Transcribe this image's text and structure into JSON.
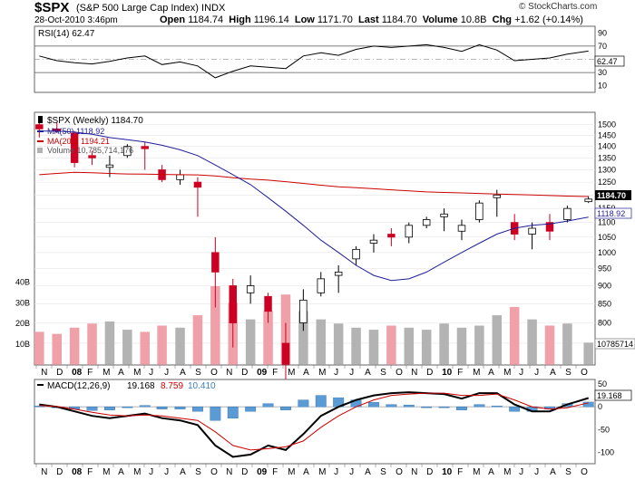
{
  "header": {
    "symbol": "$SPX",
    "name": "(S&P 500 Large Cap Index)",
    "exchange": "INDX",
    "date": "28-Oct-2010 3:46pm",
    "open_label": "Open",
    "open": "1184.74",
    "high_label": "High",
    "high": "1196.14",
    "low_label": "Low",
    "low": "1171.70",
    "last_label": "Last",
    "last": "1184.70",
    "volume_label": "Volume",
    "volume": "10.8B",
    "chg_label": "Chg",
    "chg": "+1.62 (+0.14%)",
    "watermark": "© StockCharts.com"
  },
  "colors": {
    "up_candle": "#000000",
    "down_candle": "#cc0022",
    "ma50": "#1f1f99",
    "ma200": "#cc0000",
    "vol_up": "#b3b3b3",
    "vol_down": "#f0a0a8",
    "macd_hist": "#5b9bd5",
    "signal": "#cc0000"
  },
  "chart_data": [
    {
      "type": "line",
      "label": "RSI(14) 62.47",
      "y_ticks": [
        90,
        70,
        50,
        30,
        10
      ],
      "ylim": [
        0,
        100
      ],
      "last_label": "62.47",
      "dates": [
        "2007-11-02",
        "2007-12-07",
        "2008-01-11",
        "2008-02-15",
        "2008-03-21",
        "2008-04-25",
        "2008-05-30",
        "2008-07-03",
        "2008-08-08",
        "2008-09-12",
        "2008-10-17",
        "2008-11-21",
        "2008-12-26",
        "2009-01-30",
        "2009-03-06",
        "2009-04-10",
        "2009-05-15",
        "2009-06-19",
        "2009-07-24",
        "2009-08-28",
        "2009-10-02",
        "2009-11-06",
        "2009-12-11",
        "2010-01-15",
        "2010-02-19",
        "2010-03-26",
        "2010-04-30",
        "2010-06-04",
        "2010-07-09",
        "2010-08-13",
        "2010-09-17",
        "2010-10-29"
      ],
      "values": [
        55,
        48,
        45,
        43,
        47,
        52,
        55,
        42,
        46,
        40,
        22,
        32,
        40,
        38,
        36,
        55,
        60,
        56,
        65,
        70,
        68,
        70,
        72,
        68,
        62,
        72,
        64,
        48,
        50,
        52,
        58,
        62.47
      ]
    },
    {
      "type": "candlestick",
      "label": "$SPX (Weekly) 1184.70",
      "ma50_label": "MA(50) 1118.92",
      "ma200_label": "MA(200) 1194.21",
      "volume_label": "Volume 10,785,714,176",
      "y_ticks": [
        1500,
        1450,
        1400,
        1350,
        1300,
        1250,
        1200,
        1150,
        1100,
        1050,
        1000,
        950,
        900,
        850,
        800,
        750
      ],
      "volume_ticks": [
        "40B",
        "30B",
        "20B",
        "10B"
      ],
      "volume_max": 45,
      "last_price_label": "1184.70",
      "ma50_last_label": "1118.92",
      "volume_last_label": "10785714",
      "dates": [
        "2007-11-02",
        "2007-12-07",
        "2008-01-11",
        "2008-02-15",
        "2008-03-21",
        "2008-04-25",
        "2008-05-30",
        "2008-07-03",
        "2008-08-08",
        "2008-09-12",
        "2008-10-17",
        "2008-11-21",
        "2008-12-26",
        "2009-01-30",
        "2009-03-06",
        "2009-04-10",
        "2009-05-15",
        "2009-06-19",
        "2009-07-24",
        "2009-08-28",
        "2009-10-02",
        "2009-11-06",
        "2009-12-11",
        "2010-01-15",
        "2010-02-19",
        "2010-03-26",
        "2010-04-30",
        "2010-06-04",
        "2010-07-09",
        "2010-08-13",
        "2010-09-17",
        "2010-10-29"
      ],
      "open": [
        1500,
        1480,
        1460,
        1360,
        1310,
        1360,
        1400,
        1300,
        1260,
        1250,
        1000,
        900,
        880,
        870,
        750,
        800,
        880,
        930,
        980,
        1030,
        1060,
        1050,
        1090,
        1120,
        1070,
        1110,
        1190,
        1100,
        1060,
        1100,
        1110,
        1175
      ],
      "high": [
        1520,
        1510,
        1470,
        1380,
        1360,
        1410,
        1420,
        1320,
        1300,
        1270,
        1050,
        920,
        930,
        880,
        800,
        890,
        940,
        960,
        1020,
        1060,
        1080,
        1100,
        1120,
        1150,
        1110,
        1180,
        1220,
        1130,
        1100,
        1130,
        1160,
        1196
      ],
      "low": [
        1440,
        1460,
        1310,
        1320,
        1270,
        1350,
        1300,
        1250,
        1240,
        1120,
        840,
        740,
        850,
        800,
        666,
        780,
        870,
        880,
        960,
        1000,
        1020,
        1030,
        1080,
        1070,
        1040,
        1100,
        1120,
        1040,
        1010,
        1040,
        1100,
        1170
      ],
      "close": [
        1480,
        1470,
        1330,
        1350,
        1320,
        1400,
        1390,
        1260,
        1280,
        1230,
        940,
        800,
        900,
        830,
        700,
        860,
        920,
        940,
        1010,
        1040,
        1050,
        1090,
        1110,
        1130,
        1090,
        1170,
        1200,
        1060,
        1080,
        1070,
        1150,
        1184.7
      ],
      "ma50": [
        1470,
        1470,
        1465,
        1455,
        1440,
        1430,
        1420,
        1405,
        1385,
        1360,
        1320,
        1280,
        1240,
        1190,
        1140,
        1090,
        1040,
        1000,
        960,
        930,
        915,
        920,
        940,
        970,
        1000,
        1030,
        1060,
        1080,
        1090,
        1095,
        1105,
        1118.92
      ],
      "ma200": [
        1280,
        1285,
        1290,
        1288,
        1285,
        1283,
        1282,
        1281,
        1280,
        1279,
        1275,
        1268,
        1262,
        1258,
        1252,
        1245,
        1238,
        1232,
        1228,
        1224,
        1220,
        1216,
        1212,
        1210,
        1208,
        1206,
        1204,
        1202,
        1200,
        1198,
        1196,
        1194.21
      ],
      "volume": [
        16,
        15,
        18,
        20,
        21,
        17,
        16,
        19,
        18,
        24,
        38,
        30,
        22,
        26,
        34,
        26,
        22,
        20,
        18,
        17,
        19,
        18,
        17,
        20,
        18,
        19,
        24,
        28,
        22,
        19,
        20,
        10.8
      ]
    },
    {
      "type": "line",
      "label": "MACD(12,26,9)",
      "macd_value": "19.168",
      "signal_value": "8.759",
      "histogram_value": "10.410",
      "y_ticks": [
        50,
        0,
        -50,
        -100
      ],
      "last_label": "19.168",
      "dates": [
        "2007-11-02",
        "2007-12-07",
        "2008-01-11",
        "2008-02-15",
        "2008-03-21",
        "2008-04-25",
        "2008-05-30",
        "2008-07-03",
        "2008-08-08",
        "2008-09-12",
        "2008-10-17",
        "2008-11-21",
        "2008-12-26",
        "2009-01-30",
        "2009-03-06",
        "2009-04-10",
        "2009-05-15",
        "2009-06-19",
        "2009-07-24",
        "2009-08-28",
        "2009-10-02",
        "2009-11-06",
        "2009-12-11",
        "2010-01-15",
        "2010-02-19",
        "2010-03-26",
        "2010-04-30",
        "2010-06-04",
        "2010-07-09",
        "2010-08-13",
        "2010-09-17",
        "2010-10-29"
      ],
      "macd": [
        5,
        0,
        -10,
        -20,
        -25,
        -20,
        -15,
        -25,
        -30,
        -40,
        -85,
        -110,
        -105,
        -85,
        -95,
        -60,
        -20,
        0,
        15,
        25,
        30,
        32,
        30,
        28,
        18,
        30,
        30,
        5,
        -10,
        -10,
        5,
        19.168
      ],
      "signal": [
        3,
        1,
        -5,
        -12,
        -18,
        -20,
        -18,
        -20,
        -25,
        -30,
        -55,
        -85,
        -95,
        -92,
        -88,
        -75,
        -45,
        -20,
        0,
        15,
        25,
        28,
        30,
        30,
        25,
        25,
        28,
        15,
        0,
        -5,
        -2,
        8.759
      ],
      "histogram": [
        2,
        -1,
        -5,
        -8,
        -7,
        0,
        3,
        -5,
        -5,
        -10,
        -30,
        -25,
        -10,
        7,
        -7,
        15,
        25,
        20,
        15,
        10,
        5,
        4,
        0,
        -2,
        -7,
        5,
        2,
        -10,
        -10,
        -5,
        7,
        10.41
      ]
    }
  ],
  "x_axis": {
    "labels": [
      "N",
      "D",
      "08",
      "F",
      "M",
      "A",
      "M",
      "J",
      "J",
      "A",
      "S",
      "O",
      "N",
      "D",
      "09",
      "F",
      "M",
      "A",
      "M",
      "J",
      "J",
      "A",
      "S",
      "O",
      "N",
      "D",
      "10",
      "F",
      "M",
      "A",
      "M",
      "J",
      "J",
      "A",
      "S",
      "O"
    ],
    "bold": [
      "08",
      "09",
      "10"
    ]
  }
}
